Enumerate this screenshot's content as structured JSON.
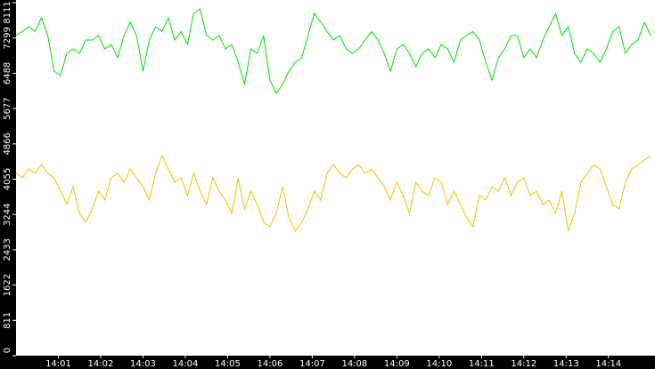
{
  "chart_data": {
    "type": "line",
    "x": [
      0,
      0.15,
      0.3,
      0.45,
      0.6,
      0.75,
      0.9,
      1.05,
      1.2,
      1.35,
      1.5,
      1.65,
      1.8,
      1.95,
      2.1,
      2.25,
      2.4,
      2.55,
      2.7,
      2.85,
      3,
      3.15,
      3.3,
      3.45,
      3.6,
      3.75,
      3.9,
      4.05,
      4.2,
      4.35,
      4.5,
      4.65,
      4.8,
      4.95,
      5.1,
      5.25,
      5.4,
      5.55,
      5.7,
      5.85,
      6,
      6.15,
      6.3,
      6.45,
      6.6,
      6.75,
      6.9,
      7.05,
      7.2,
      7.35,
      7.5,
      7.65,
      7.8,
      7.95,
      8.1,
      8.25,
      8.4,
      8.55,
      8.7,
      8.85,
      9,
      9.15,
      9.3,
      9.45,
      9.6,
      9.75,
      9.9,
      10.05,
      10.2,
      10.35,
      10.5,
      10.65,
      10.8,
      10.95,
      11.1,
      11.25,
      11.4,
      11.55,
      11.7,
      11.85,
      12,
      12.15,
      12.3,
      12.45,
      12.6,
      12.75,
      12.9,
      13.05,
      13.2,
      13.35,
      13.5,
      13.65,
      13.8,
      13.95,
      14.1,
      14.25,
      14.4,
      14.55,
      14.7,
      14.85,
      15
    ],
    "series": [
      {
        "color": "#00e000",
        "values": [
          7355,
          7450,
          7559,
          7450,
          7763,
          7355,
          6538,
          6435,
          6946,
          7048,
          6946,
          7252,
          7252,
          7355,
          7048,
          7150,
          6844,
          7355,
          7661,
          7355,
          6538,
          7252,
          7559,
          7450,
          7763,
          7252,
          7450,
          7150,
          7866,
          7968,
          7355,
          7252,
          7355,
          7048,
          7150,
          6742,
          6231,
          7048,
          6946,
          7355,
          6333,
          6027,
          6231,
          6538,
          6742,
          6844,
          7355,
          7866,
          7661,
          7450,
          7252,
          7355,
          7048,
          6946,
          7048,
          7252,
          7450,
          7252,
          6946,
          6538,
          7048,
          7150,
          6946,
          6640,
          6946,
          7048,
          6844,
          7150,
          7048,
          6742,
          7252,
          7355,
          7450,
          7252,
          6742,
          6333,
          6844,
          7048,
          7355,
          7355,
          6844,
          7048,
          6844,
          7252,
          7559,
          7866,
          7355,
          7559,
          6946,
          6742,
          7048,
          6946,
          6742,
          7048,
          7450,
          7559,
          6946,
          7150,
          7252,
          7661,
          7355
        ]
      },
      {
        "color": "#f0c000",
        "values": [
          4188,
          4086,
          4290,
          4188,
          4392,
          4188,
          4086,
          3780,
          3473,
          3882,
          3269,
          3065,
          3371,
          3780,
          3575,
          4086,
          4188,
          3984,
          4290,
          4086,
          3882,
          3575,
          4188,
          4597,
          4290,
          3984,
          4086,
          3677,
          4188,
          3780,
          3473,
          4086,
          3780,
          3575,
          3269,
          4086,
          3371,
          3780,
          3473,
          3065,
          2962,
          3269,
          3882,
          3167,
          2860,
          3065,
          3371,
          3780,
          3575,
          4188,
          4392,
          4188,
          4086,
          4290,
          4392,
          4188,
          4290,
          4086,
          3882,
          3575,
          3984,
          3677,
          3269,
          3984,
          3780,
          3677,
          4086,
          3984,
          3473,
          3780,
          3473,
          3167,
          2962,
          3677,
          3575,
          3882,
          3780,
          4086,
          3677,
          3984,
          4086,
          3677,
          3780,
          3473,
          3575,
          3269,
          3780,
          2860,
          3269,
          3984,
          4188,
          4392,
          4290,
          3882,
          3473,
          3371,
          3984,
          4290,
          4392,
          4495,
          4597
        ]
      }
    ],
    "xlim": [
      0,
      15.1
    ],
    "xticks": [
      {
        "value": 1,
        "label": "14:01"
      },
      {
        "value": 2,
        "label": "14:02"
      },
      {
        "value": 3,
        "label": "14:03"
      },
      {
        "value": 4,
        "label": "14:04"
      },
      {
        "value": 5,
        "label": "14:05"
      },
      {
        "value": 6,
        "label": "14:06"
      },
      {
        "value": 7,
        "label": "14:07"
      },
      {
        "value": 8,
        "label": "14:08"
      },
      {
        "value": 9,
        "label": "14:09"
      },
      {
        "value": 10,
        "label": "14:10"
      },
      {
        "value": 11,
        "label": "14:11"
      },
      {
        "value": 12,
        "label": "14:12"
      },
      {
        "value": 13,
        "label": "14:13"
      },
      {
        "value": 14,
        "label": "14:14"
      }
    ],
    "ylim": [
      0,
      8111
    ],
    "yticks": [
      0,
      811,
      1622,
      2433,
      3244,
      4055,
      4866,
      5677,
      6488,
      7299,
      8111
    ]
  }
}
